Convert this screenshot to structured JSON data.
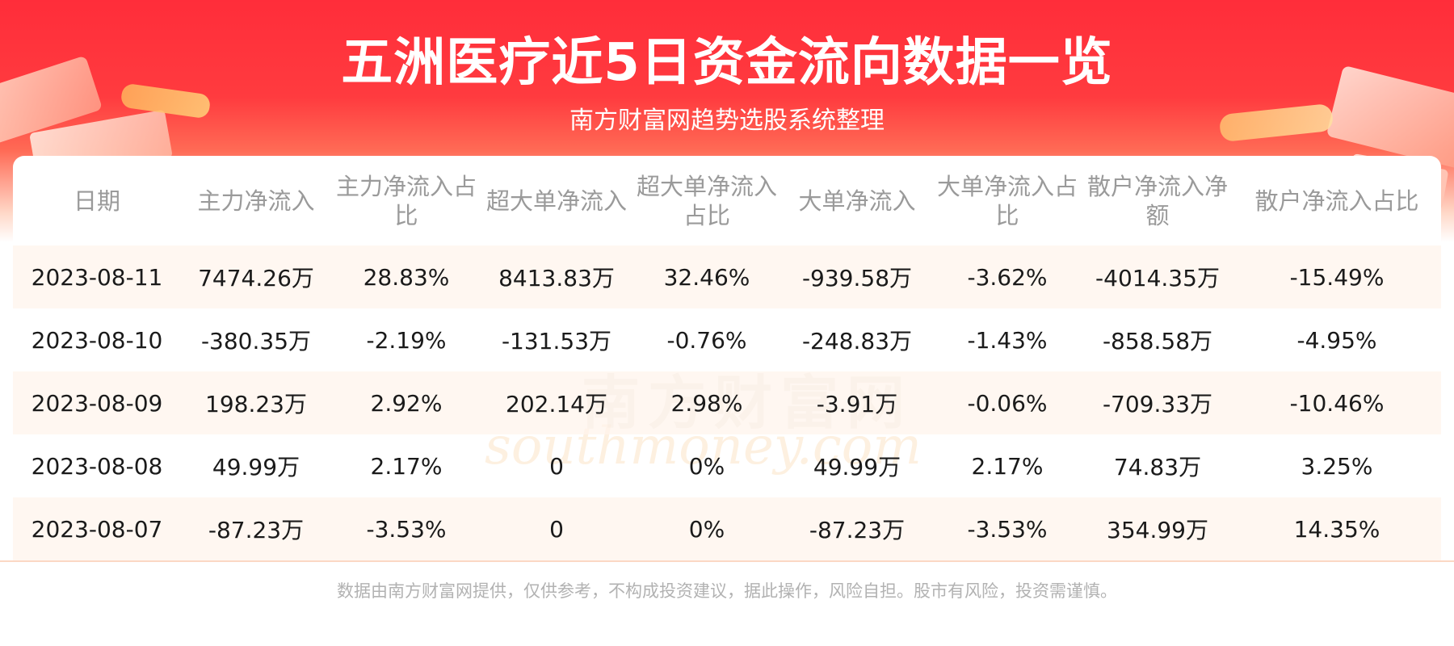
{
  "header": {
    "title": "五洲医疗近5日资金流向数据一览",
    "subtitle": "南方财富网趋势选股系统整理"
  },
  "watermark": {
    "cn": "南方财富网",
    "en": "southmoney.com"
  },
  "table": {
    "columns": [
      "日期",
      "主力净流入",
      "主力净流入占比",
      "超大单净流入",
      "超大单净流入占比",
      "大单净流入",
      "大单净流入占比",
      "散户净流入净额",
      "散户净流入占比"
    ],
    "rows": [
      [
        "2023-08-11",
        "7474.26万",
        "28.83%",
        "8413.83万",
        "32.46%",
        "-939.58万",
        "-3.62%",
        "-4014.35万",
        "-15.49%"
      ],
      [
        "2023-08-10",
        "-380.35万",
        "-2.19%",
        "-131.53万",
        "-0.76%",
        "-248.83万",
        "-1.43%",
        "-858.58万",
        "-4.95%"
      ],
      [
        "2023-08-09",
        "198.23万",
        "2.92%",
        "202.14万",
        "2.98%",
        "-3.91万",
        "-0.06%",
        "-709.33万",
        "-10.46%"
      ],
      [
        "2023-08-08",
        "49.99万",
        "2.17%",
        "0",
        "0%",
        "49.99万",
        "2.17%",
        "74.83万",
        "3.25%"
      ],
      [
        "2023-08-07",
        "-87.23万",
        "-3.53%",
        "0",
        "0%",
        "-87.23万",
        "-3.53%",
        "354.99万",
        "14.35%"
      ]
    ]
  },
  "footer": {
    "disclaimer": "数据由南方财富网提供，仅供参考，不构成投资建议，据此操作，风险自担。股市有风险，投资需谨慎。"
  },
  "colors": {
    "header_red": "#ff2d3a",
    "row_stripe": "#fff4ec",
    "header_text_gray": "#9a9a9a",
    "footer_text_gray": "#b2b2b2"
  }
}
